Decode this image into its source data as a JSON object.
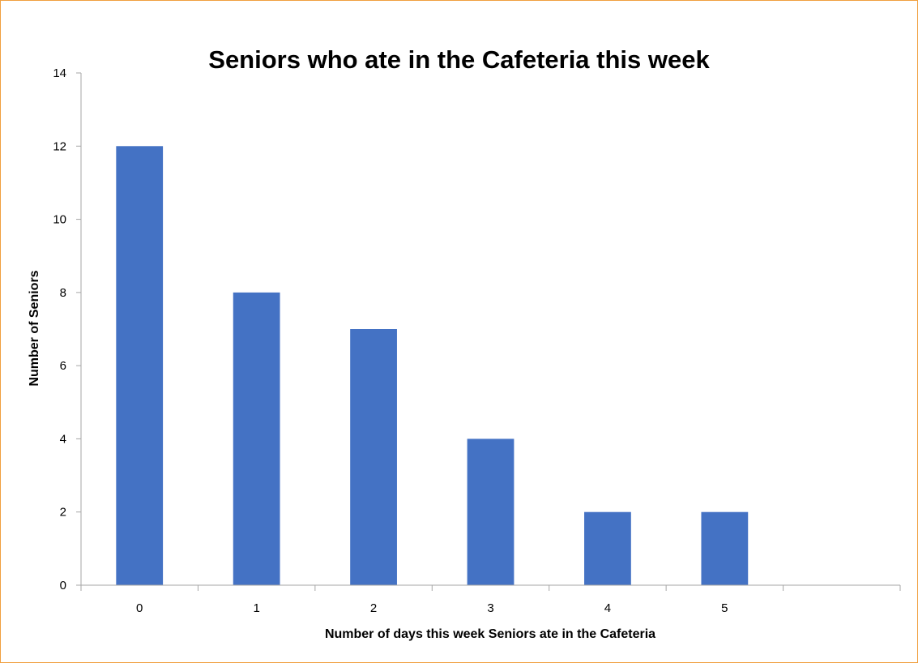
{
  "chart_data": {
    "type": "bar",
    "title": "Seniors who ate in the Cafeteria this week",
    "xlabel": "Number of days this week Seniors ate in the Cafeteria",
    "ylabel": "Number of Seniors",
    "categories": [
      "0",
      "1",
      "2",
      "3",
      "4",
      "5",
      ""
    ],
    "values": [
      12,
      8,
      7,
      4,
      2,
      2,
      null
    ],
    "ylim": [
      0,
      14
    ],
    "yticks": [
      "0",
      "2",
      "4",
      "6",
      "8",
      "10",
      "12",
      "14"
    ],
    "grid": false,
    "legend": "none",
    "bar_color": "#4472C4",
    "frame_color": "#F0A040"
  }
}
